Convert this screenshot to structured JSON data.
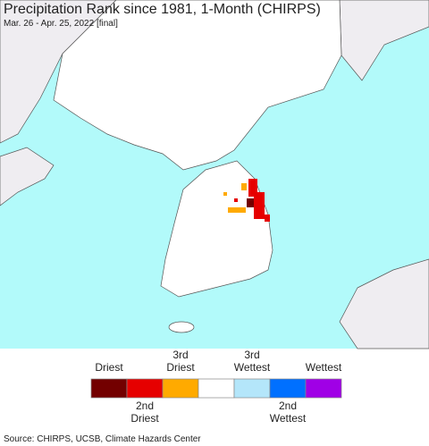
{
  "header": {
    "title": "Precipitation Rank since 1981, 1-Month (CHIRPS)",
    "subtitle": "Mar. 26 - Apr. 25, 2022 [final]"
  },
  "legend": {
    "colors": [
      "#730000",
      "#e60000",
      "#ffaa00",
      "#ffffff",
      "#b4e6fa",
      "#0070ff",
      "#a000e6"
    ],
    "labels": {
      "driest": "Driest",
      "third_driest": [
        "3rd",
        "Driest"
      ],
      "third_wettest": [
        "3rd",
        "Wettest"
      ],
      "wettest": "Wettest",
      "second_driest": [
        "2nd",
        "Driest"
      ],
      "second_wettest": [
        "2nd",
        "Wettest"
      ]
    }
  },
  "footer": {
    "source": "Source: CHIRPS, UCSB, Climate Hazards Center"
  }
}
